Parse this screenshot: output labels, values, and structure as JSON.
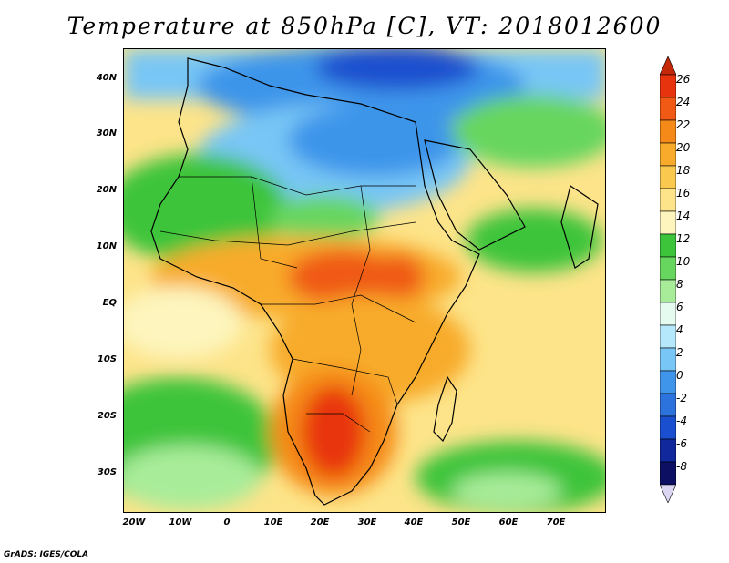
{
  "title": "Temperature at 850hPa [C], VT: 2018012600",
  "credit": "GrADS: IGES/COLA",
  "lat_labels": [
    "40N",
    "30N",
    "20N",
    "10N",
    "EQ",
    "10S",
    "20S",
    "30S"
  ],
  "lon_labels": [
    "20W",
    "10W",
    "0",
    "10E",
    "20E",
    "30E",
    "40E",
    "50E",
    "60E",
    "70E"
  ],
  "colorbar": {
    "labels": [
      "26",
      "24",
      "22",
      "20",
      "18",
      "16",
      "14",
      "12",
      "10",
      "8",
      "6",
      "4",
      "2",
      "0",
      "-2",
      "-4",
      "-6",
      "-8"
    ],
    "colors": [
      "#e8340e",
      "#f05a14",
      "#f58a19",
      "#f8ab2a",
      "#fac84f",
      "#fde48a",
      "#fdf5bd",
      "#3ec43b",
      "#66d65e",
      "#a8ec9a",
      "#e6fbf0",
      "#b6e8fb",
      "#78c6f5",
      "#3e95ea",
      "#2d73dd",
      "#1a4fcf",
      "#10289c",
      "#0c0f62"
    ],
    "overflow_high": "#c42808",
    "overflow_low": "#dcd6f3"
  }
}
